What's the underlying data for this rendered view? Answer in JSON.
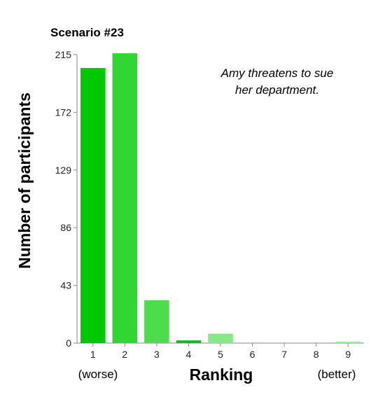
{
  "chart_data": {
    "type": "bar",
    "title": "Scenario #23",
    "annotation": [
      "Amy threatens to sue",
      "her department."
    ],
    "xlabel": "Ranking",
    "ylabel": "Number of participants",
    "x_end_labels": {
      "left": "(worse)",
      "right": "(better)"
    },
    "categories": [
      "1",
      "2",
      "3",
      "4",
      "5",
      "6",
      "7",
      "8",
      "9"
    ],
    "values": [
      205,
      216,
      32,
      2,
      7,
      0,
      0,
      0,
      1
    ],
    "colors": [
      "#00c800",
      "#32d632",
      "#4ddc4d",
      "#1ab81a",
      "#86e886",
      "#a8eea8",
      "#a8eea8",
      "#a8eea8",
      "#90ea90"
    ],
    "yticks": [
      0,
      43,
      86,
      129,
      172,
      215
    ],
    "ylim": [
      0,
      215
    ],
    "grid": false
  }
}
